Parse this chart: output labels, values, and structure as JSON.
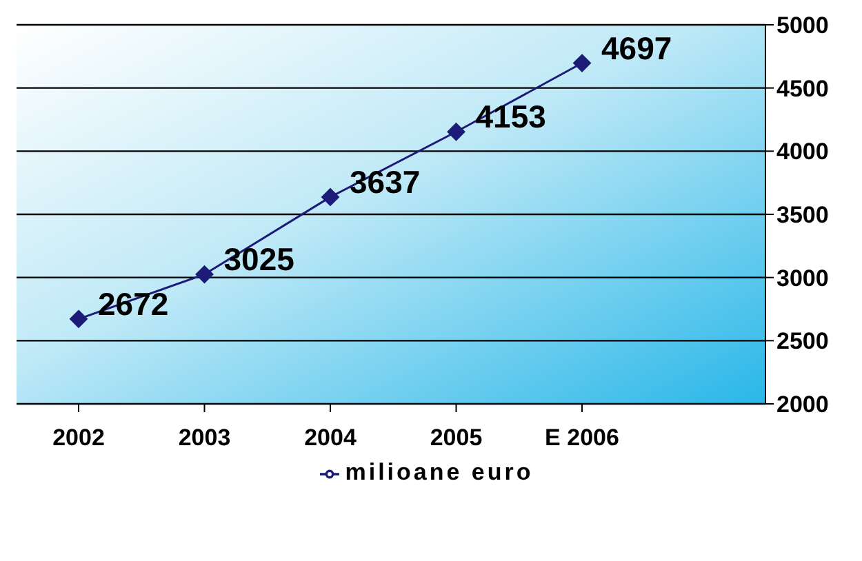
{
  "chart_data": {
    "type": "line",
    "categories": [
      "2002",
      "2003",
      "2004",
      "2005",
      "E 2006"
    ],
    "series": [
      {
        "name": "milioane euro",
        "color": "#1c1c78",
        "values": [
          2672,
          3025,
          3637,
          4153,
          4697
        ]
      }
    ],
    "ylim": [
      2000,
      5000
    ],
    "yticks": [
      2000,
      2500,
      3000,
      3500,
      4000,
      4500,
      5000
    ],
    "grid": "y",
    "legend": "bottom",
    "marker": "diamond",
    "line_style": "solid",
    "data_labels": true
  }
}
